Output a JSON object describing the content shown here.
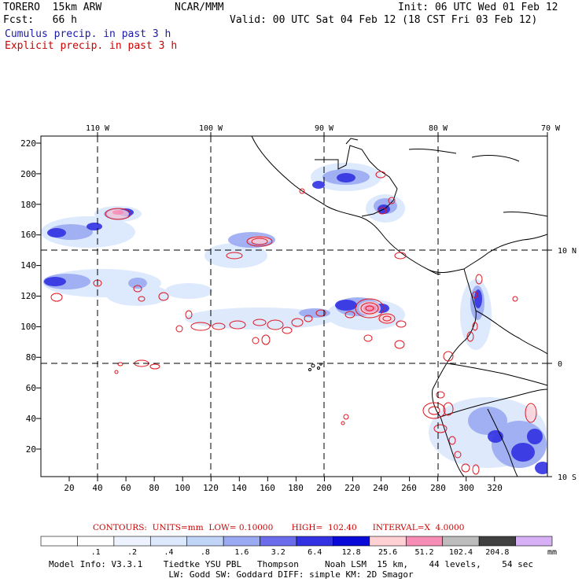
{
  "header": {
    "model": "TORERO  15km ARW",
    "org": "NCAR/MMM",
    "init": "Init: 06 UTC Wed 01 Feb 12",
    "fcst": "Fcst:   66 h",
    "valid": "Valid: 00 UTC Sat 04 Feb 12 (18 CST Fri 03 Feb 12)",
    "line_cumulus": "Cumulus precip. in past 3 h",
    "line_explicit": "Explicit precip. in past 3 h"
  },
  "colors": {
    "cumulus_text": "#1a1aa8",
    "explicit_text": "#cc0000",
    "contour": "#e0141e",
    "coast": "#000000"
  },
  "map": {
    "lon_labels": [
      "110 W",
      "100 W",
      "90 W",
      "80 W",
      "70 W"
    ],
    "lat_labels": [
      "10 N",
      "0",
      "10 S"
    ],
    "y_ticks": [
      "220",
      "200",
      "180",
      "160",
      "140",
      "120",
      "100",
      "80",
      "60",
      "40",
      "20"
    ],
    "x_ticks": [
      "20",
      "40",
      "60",
      "80",
      "100",
      "120",
      "140",
      "160",
      "180",
      "200",
      "220",
      "240",
      "260",
      "280",
      "300",
      "320"
    ]
  },
  "contours_info": {
    "text": "CONTOURS:  UNITS=mm  LOW= 0.10000       HIGH=  102.40      INTERVAL=X  4.0000"
  },
  "colorbar": {
    "unit": "mm",
    "labels": [
      ".1",
      ".2",
      ".4",
      ".8",
      "1.6",
      "3.2",
      "6.4",
      "12.8",
      "25.6",
      "51.2",
      "102.4",
      "204.8"
    ],
    "colors": [
      "#ffffff",
      "#ffffff",
      "#eef4ff",
      "#dce8fc",
      "#c0d4f8",
      "#9aaaf2",
      "#6a6cec",
      "#3232e2",
      "#0a0ad8",
      "#ffd0d4",
      "#f78cb4",
      "#bcbcbc",
      "#404040",
      "#d8b0f6"
    ]
  },
  "footer": {
    "line1": "Model Info: V3.3.1    Tiedtke YSU PBL   Thompson     Noah LSM  15 km,    44 levels,    54 sec",
    "line2": "LW: Godd SW: Goddard DIFF: simple KM: 2D Smagor"
  }
}
